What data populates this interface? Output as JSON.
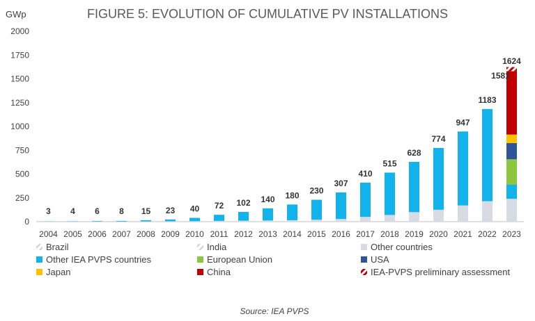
{
  "chart_data": {
    "type": "bar",
    "title": "FIGURE 5: EVOLUTION OF CUMULATIVE PV INSTALLATIONS",
    "ylabel": "GWp",
    "xlabel": "",
    "ylim": [
      0,
      2000
    ],
    "yticks": [
      0,
      250,
      500,
      750,
      1000,
      1250,
      1500,
      1750,
      2000
    ],
    "categories": [
      "2004",
      "2005",
      "2006",
      "2007",
      "2008",
      "2009",
      "2010",
      "2011",
      "2012",
      "2013",
      "2014",
      "2015",
      "2016",
      "2017",
      "2018",
      "2019",
      "2020",
      "2021",
      "2022",
      "2023"
    ],
    "totals": [
      3,
      4,
      6,
      8,
      15,
      23,
      40,
      72,
      102,
      140,
      180,
      230,
      307,
      410,
      515,
      628,
      774,
      947,
      1183,
      1624
    ],
    "extra_label_2023": 1581,
    "series": [
      {
        "name": "Brazil",
        "values": [
          0,
          0,
          0,
          0,
          0,
          0,
          0,
          0,
          0,
          0,
          0,
          0,
          0,
          0,
          0,
          0,
          0,
          0,
          0,
          0
        ]
      },
      {
        "name": "India",
        "values": [
          0,
          0,
          0,
          0,
          0,
          0,
          0,
          0,
          0,
          0,
          0,
          0,
          0,
          0,
          0,
          0,
          0,
          0,
          0,
          0
        ]
      },
      {
        "name": "Other countries",
        "values": [
          1,
          1,
          1,
          2,
          3,
          4,
          5,
          8,
          10,
          12,
          15,
          20,
          28,
          50,
          70,
          100,
          125,
          170,
          215,
          240
        ]
      },
      {
        "name": "Other IEA PVPS countries",
        "values": [
          2,
          3,
          5,
          6,
          12,
          19,
          35,
          64,
          92,
          128,
          165,
          210,
          279,
          360,
          445,
          528,
          649,
          777,
          968,
          150
        ]
      },
      {
        "name": "European Union",
        "values": [
          0,
          0,
          0,
          0,
          0,
          0,
          0,
          0,
          0,
          0,
          0,
          0,
          0,
          0,
          0,
          0,
          0,
          0,
          0,
          265
        ]
      },
      {
        "name": "USA",
        "values": [
          0,
          0,
          0,
          0,
          0,
          0,
          0,
          0,
          0,
          0,
          0,
          0,
          0,
          0,
          0,
          0,
          0,
          0,
          0,
          170
        ]
      },
      {
        "name": "Japan",
        "values": [
          0,
          0,
          0,
          0,
          0,
          0,
          0,
          0,
          0,
          0,
          0,
          0,
          0,
          0,
          0,
          0,
          0,
          0,
          0,
          90
        ]
      },
      {
        "name": "China",
        "values": [
          0,
          0,
          0,
          0,
          0,
          0,
          0,
          0,
          0,
          0,
          0,
          0,
          0,
          0,
          0,
          0,
          0,
          0,
          0,
          666
        ]
      },
      {
        "name": "IEA-PVPS preliminary assessment",
        "values": [
          0,
          0,
          0,
          0,
          0,
          0,
          0,
          0,
          0,
          0,
          0,
          0,
          0,
          0,
          0,
          0,
          0,
          0,
          0,
          43
        ]
      }
    ],
    "colors": {
      "Brazil": "#d9d9d9",
      "India": "#e6e9ef",
      "Other countries": "#d6dbe4",
      "Other IEA PVPS countries": "#12b3eb",
      "European Union": "#8dc63f",
      "USA": "#2e5597",
      "Japan": "#ffc000",
      "China": "#c00000",
      "IEA-PVPS preliminary assessment": "#c00000"
    },
    "legend": [
      "Brazil",
      "India",
      "Other countries",
      "Other IEA PVPS countries",
      "European Union",
      "USA",
      "Japan",
      "China",
      "IEA-PVPS preliminary assessment"
    ],
    "legend_position": "bottom",
    "grid": false
  },
  "source": "Source: IEA PVPS"
}
